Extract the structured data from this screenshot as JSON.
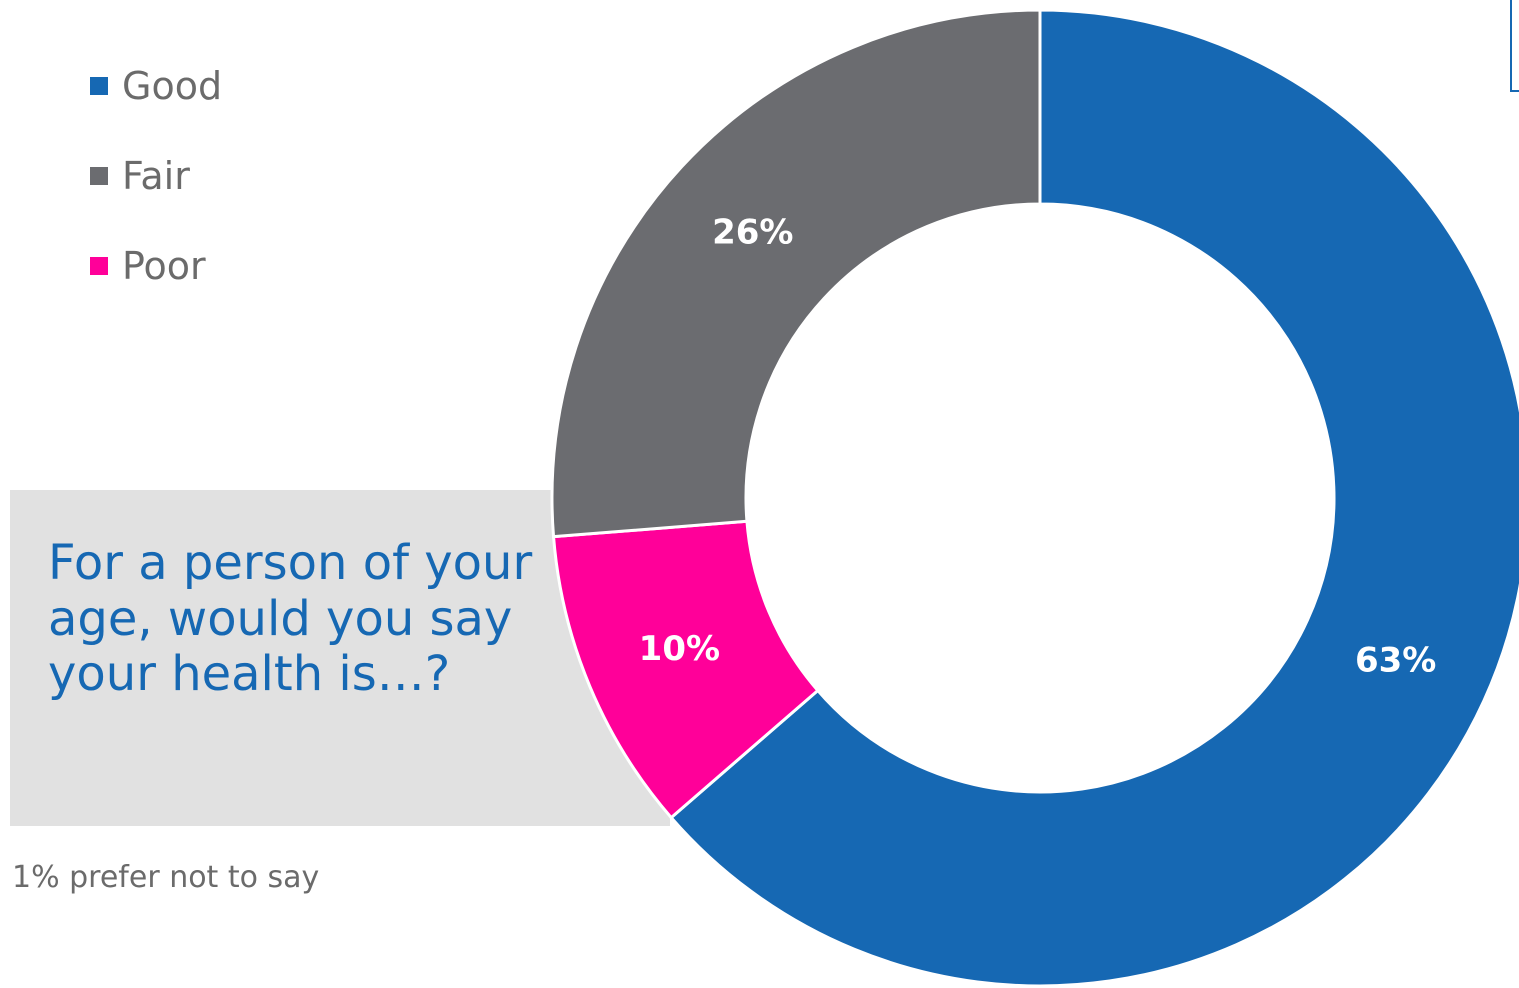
{
  "chart_data": {
    "type": "pie",
    "series": [
      {
        "name": "Good",
        "value": 63,
        "label": "63%",
        "color": "#1668b3"
      },
      {
        "name": "Poor",
        "value": 10,
        "label": "10%",
        "color": "#ff0099"
      },
      {
        "name": "Fair",
        "value": 26,
        "label": "26%",
        "color": "#6b6c70"
      }
    ],
    "legend": [
      {
        "name": "Good",
        "color": "#1668b3"
      },
      {
        "name": "Fair",
        "color": "#6b6c70"
      },
      {
        "name": "Poor",
        "color": "#ff0099"
      }
    ],
    "legend_position": "top-left",
    "donut": true
  },
  "question": "For a person of your age, would you say your health is…?",
  "footnote": "1% prefer not to say"
}
